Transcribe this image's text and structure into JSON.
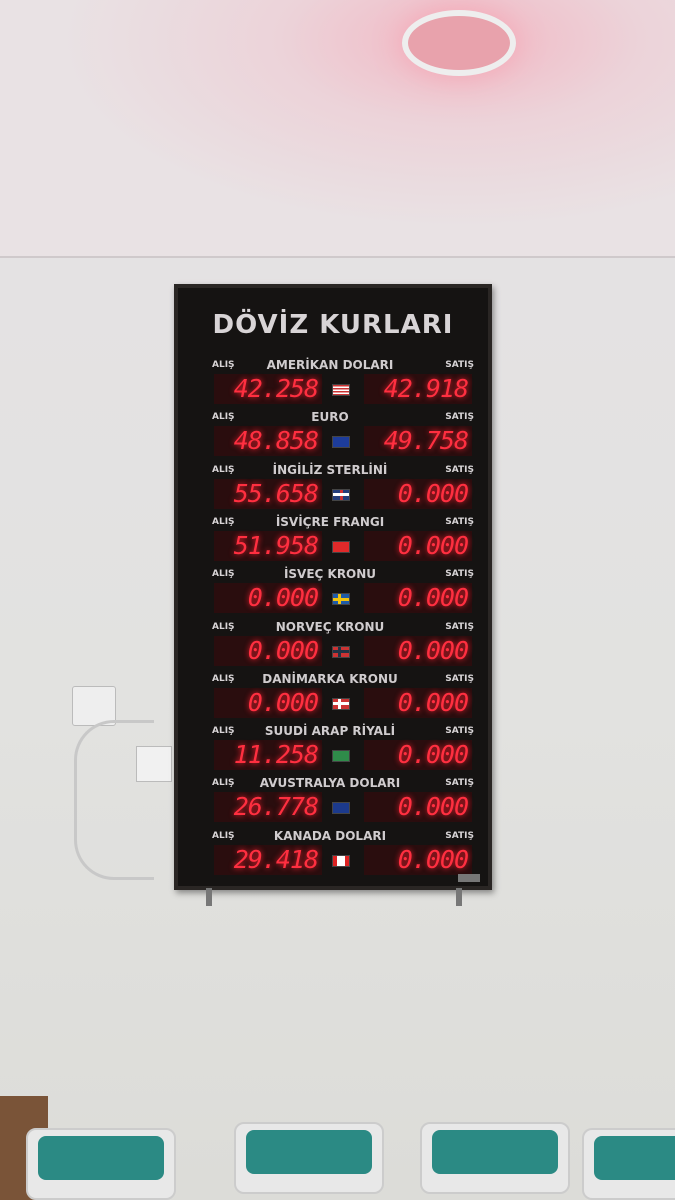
{
  "board": {
    "title": "DÖVİZ KURLARI",
    "buy_label": "ALIŞ",
    "sell_label": "SATIŞ",
    "rows": [
      {
        "name": "AMERİKAN DOLARI",
        "buy": "42.258",
        "sell": "42.918",
        "flag": "us-flag"
      },
      {
        "name": "EURO",
        "buy": "48.858",
        "sell": "49.758",
        "flag": "eu-flag"
      },
      {
        "name": "İNGİLİZ STERLİNİ",
        "buy": "55.658",
        "sell": "0.000",
        "flag": "uk-flag"
      },
      {
        "name": "İSVİÇRE FRANGI",
        "buy": "51.958",
        "sell": "0.000",
        "flag": "ch-flag"
      },
      {
        "name": "İSVEÇ KRONU",
        "buy": "0.000",
        "sell": "0.000",
        "flag": "se-flag"
      },
      {
        "name": "NORVEÇ KRONU",
        "buy": "0.000",
        "sell": "0.000",
        "flag": "no-flag"
      },
      {
        "name": "DANİMARKA KRONU",
        "buy": "0.000",
        "sell": "0.000",
        "flag": "dk-flag"
      },
      {
        "name": "SUUDİ ARAP RİYALİ",
        "buy": "11.258",
        "sell": "0.000",
        "flag": "sa-flag"
      },
      {
        "name": "AVUSTRALYA DOLARI",
        "buy": "26.778",
        "sell": "0.000",
        "flag": "au-flag"
      },
      {
        "name": "KANADA DOLARI",
        "buy": "29.418",
        "sell": "0.000",
        "flag": "ca-flag"
      }
    ],
    "led_color": "#ff2f40"
  }
}
